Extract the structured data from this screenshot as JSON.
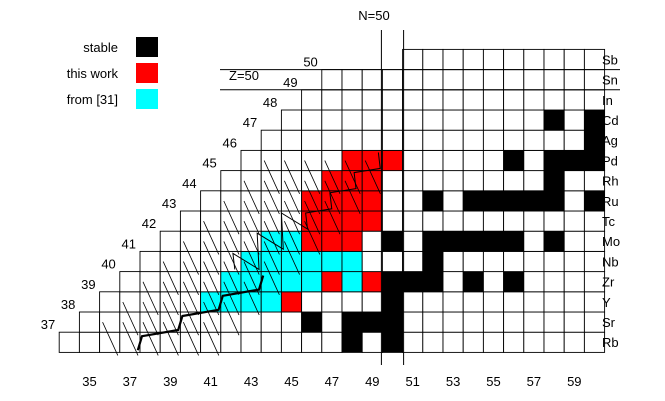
{
  "title": "N=50",
  "z_line_label": "Z=50",
  "legend": [
    {
      "label": "stable",
      "color": "#000000"
    },
    {
      "label": "this work",
      "color": "#ff0000"
    },
    {
      "label": "from [31]",
      "color": "#00ffff"
    }
  ],
  "elements": [
    {
      "symbol": "Rb",
      "Z": 37
    },
    {
      "symbol": "Sr",
      "Z": 38
    },
    {
      "symbol": "Y",
      "Z": 39
    },
    {
      "symbol": "Zr",
      "Z": 40
    },
    {
      "symbol": "Nb",
      "Z": 41
    },
    {
      "symbol": "Mo",
      "Z": 42
    },
    {
      "symbol": "Tc",
      "Z": 43
    },
    {
      "symbol": "Ru",
      "Z": 44
    },
    {
      "symbol": "Rh",
      "Z": 45
    },
    {
      "symbol": "Pd",
      "Z": 46
    },
    {
      "symbol": "Ag",
      "Z": 47
    },
    {
      "symbol": "Cd",
      "Z": 48
    },
    {
      "symbol": "In",
      "Z": 49
    },
    {
      "symbol": "Sn",
      "Z": 50
    },
    {
      "symbol": "Sb",
      "Z": 51
    }
  ],
  "z_diagonal_labels": [
    37,
    38,
    39,
    40,
    41,
    42,
    43,
    44,
    45,
    46,
    47,
    48,
    49,
    50
  ],
  "n_axis_labels": [
    35,
    37,
    39,
    41,
    43,
    45,
    47,
    49,
    51,
    53,
    55,
    57,
    59
  ],
  "chart_data": {
    "type": "chart-of-nuclides",
    "n_range": [
      34,
      60
    ],
    "z_range": [
      37,
      51
    ],
    "row_first_n": {
      "37": 34,
      "38": 35,
      "39": 36,
      "40": 37,
      "41": 38,
      "42": 39,
      "43": 40,
      "44": 41,
      "45": 42,
      "46": 43,
      "47": 44,
      "48": 45,
      "49": 46,
      "50": 47,
      "51": 51
    },
    "stable": [
      {
        "Z": 37,
        "N": [
          48,
          50
        ]
      },
      {
        "Z": 38,
        "N": [
          46,
          48,
          49,
          50
        ]
      },
      {
        "Z": 39,
        "N": [
          50
        ]
      },
      {
        "Z": 40,
        "N": [
          50,
          51,
          52,
          54,
          56
        ]
      },
      {
        "Z": 41,
        "N": [
          52
        ]
      },
      {
        "Z": 42,
        "N": [
          50,
          52,
          53,
          54,
          55,
          56,
          58
        ]
      },
      {
        "Z": 44,
        "N": [
          52,
          54,
          55,
          56,
          57,
          58,
          60
        ]
      },
      {
        "Z": 45,
        "N": [
          58
        ]
      },
      {
        "Z": 46,
        "N": [
          56,
          58,
          59,
          60
        ]
      },
      {
        "Z": 47,
        "N": [
          60
        ]
      },
      {
        "Z": 48,
        "N": [
          58,
          60
        ]
      }
    ],
    "this_work": [
      {
        "Z": 39,
        "N": [
          45
        ]
      },
      {
        "Z": 40,
        "N": [
          47,
          49
        ]
      },
      {
        "Z": 42,
        "N": [
          46,
          47,
          48
        ]
      },
      {
        "Z": 43,
        "N": [
          46,
          47,
          48,
          49
        ]
      },
      {
        "Z": 44,
        "N": [
          46,
          47,
          48,
          49
        ]
      },
      {
        "Z": 45,
        "N": [
          47,
          48,
          49
        ]
      },
      {
        "Z": 46,
        "N": [
          48,
          49,
          50
        ]
      }
    ],
    "from_31": [
      {
        "Z": 39,
        "N": [
          41,
          42,
          43,
          44
        ]
      },
      {
        "Z": 40,
        "N": [
          42,
          43,
          44,
          45,
          46,
          48
        ]
      },
      {
        "Z": 41,
        "N": [
          43,
          44,
          45,
          46,
          47,
          48
        ]
      },
      {
        "Z": 42,
        "N": [
          44,
          45
        ]
      }
    ]
  }
}
